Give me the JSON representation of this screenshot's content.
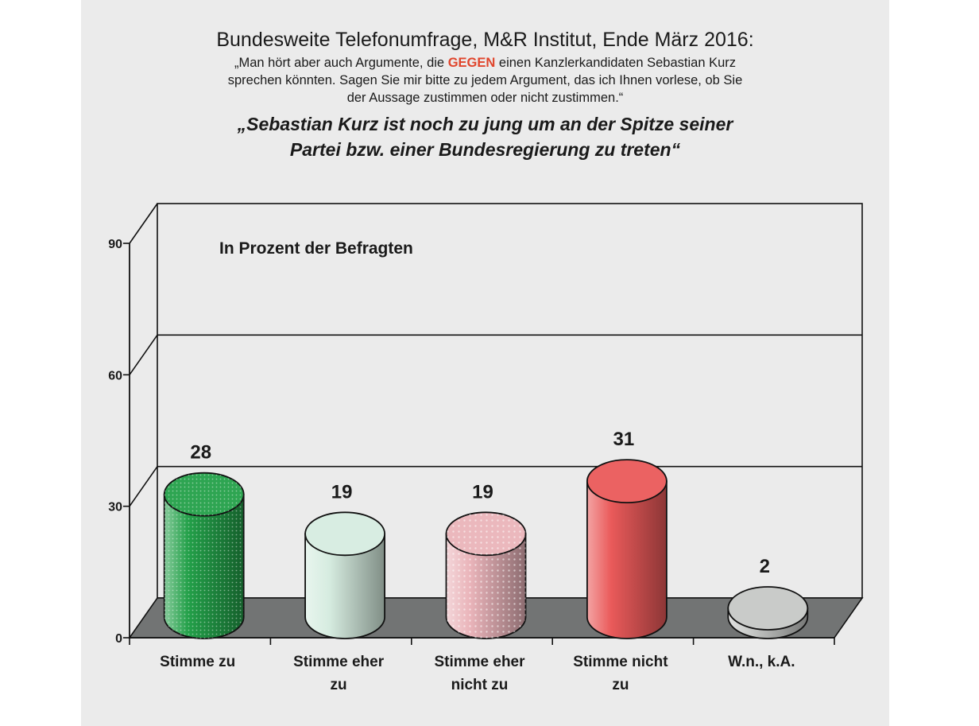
{
  "header": {
    "title": "Bundesweite Telefonumfrage, M&R Institut, Ende März 2016:",
    "question_line1_pre": "„Man hört aber auch Argumente, die ",
    "question_highlight": "GEGEN",
    "question_line1_post": " einen Kanzlerkandidaten Sebastian Kurz",
    "question_line2": "sprechen könnten. Sagen Sie mir bitte zu jedem Argument, das ich Ihnen vorlese, ob Sie",
    "question_line3": "der Aussage zustimmen oder nicht zustimmen.“",
    "statement_line1": "„Sebastian Kurz ist noch zu jung um an der Spitze seiner",
    "statement_line2": "Partei bzw. einer Bundesregierung zu treten“"
  },
  "chart_data": {
    "type": "bar",
    "subtitle": "In Prozent der Befragten",
    "categories": [
      [
        "Stimme zu"
      ],
      [
        "Stimme eher",
        "zu"
      ],
      [
        "Stimme eher",
        "nicht zu"
      ],
      [
        "Stimme nicht",
        "zu"
      ],
      [
        "W.n., k.A."
      ]
    ],
    "values": [
      28,
      19,
      19,
      31,
      2
    ],
    "value_labels": [
      "28",
      "19",
      "19",
      "31",
      "2"
    ],
    "colors": [
      "#23a049",
      "#d6ece0",
      "#eab4ba",
      "#ea5a5a",
      "#c6c8c6"
    ],
    "ylim": [
      0,
      90
    ],
    "yticks": [
      0,
      30,
      60,
      90
    ],
    "style": "3d-cylinder",
    "grid": true
  }
}
